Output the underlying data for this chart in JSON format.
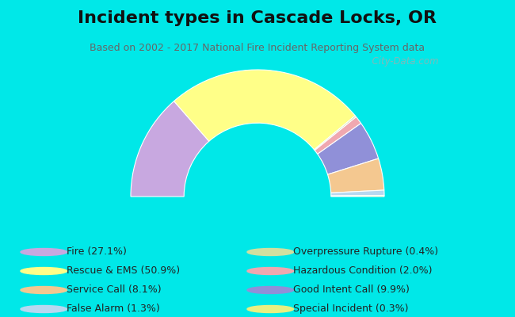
{
  "title": "Incident types in Cascade Locks, OR",
  "subtitle": "Based on 2002 - 2017 National Fire Incident Reporting System data",
  "background_outer": "#00e8e8",
  "background_inner_color": "#e8f0e0",
  "watermark": "© City-Data.com",
  "segments": [
    {
      "label": "Fire",
      "pct": 27.1,
      "color": "#c8a8e0"
    },
    {
      "label": "Rescue & EMS",
      "pct": 50.9,
      "color": "#ffff88"
    },
    {
      "label": "Overpressure Rupture",
      "pct": 0.4,
      "color": "#d0e0a0"
    },
    {
      "label": "Hazardous Condition",
      "pct": 2.0,
      "color": "#f0a8b0"
    },
    {
      "label": "Good Intent Call",
      "pct": 9.9,
      "color": "#9090d8"
    },
    {
      "label": "Service Call",
      "pct": 8.1,
      "color": "#f4c890"
    },
    {
      "label": "False Alarm",
      "pct": 1.3,
      "color": "#b8d8f0"
    },
    {
      "label": "Special Incident",
      "pct": 0.3,
      "color": "#e8f080"
    }
  ],
  "legend_left": [
    {
      "key": "Fire",
      "label": "Fire (27.1%)",
      "color": "#c8a8e0"
    },
    {
      "key": "Rescue & EMS",
      "label": "Rescue & EMS (50.9%)",
      "color": "#ffff88"
    },
    {
      "key": "Service Call",
      "label": "Service Call (8.1%)",
      "color": "#f4c890"
    },
    {
      "key": "False Alarm",
      "label": "False Alarm (1.3%)",
      "color": "#b8d8f0"
    }
  ],
  "legend_right": [
    {
      "key": "Overpressure Rupture",
      "label": "Overpressure Rupture (0.4%)",
      "color": "#d0e0a0"
    },
    {
      "key": "Hazardous Condition",
      "label": "Hazardous Condition (2.0%)",
      "color": "#f0a8b0"
    },
    {
      "key": "Good Intent Call",
      "label": "Good Intent Call (9.9%)",
      "color": "#9090d8"
    },
    {
      "key": "Special Incident",
      "label": "Special Incident (0.3%)",
      "color": "#e8f080"
    }
  ],
  "title_fontsize": 16,
  "subtitle_fontsize": 9,
  "legend_fontsize": 9,
  "outer_r": 1.0,
  "inner_r": 0.58,
  "figsize": [
    6.5,
    4.0
  ],
  "dpi": 100
}
